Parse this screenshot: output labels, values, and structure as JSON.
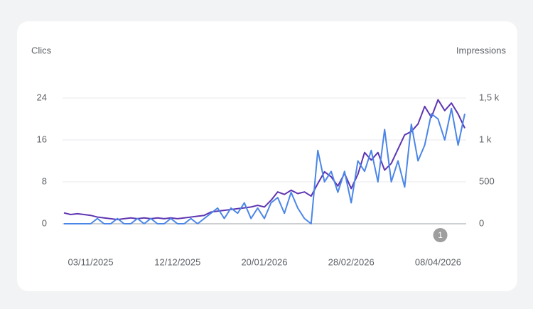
{
  "chart_data": {
    "type": "line",
    "x": [
      "22/10/2025",
      "25/10/2025",
      "28/10/2025",
      "31/10/2025",
      "03/11/2025",
      "06/11/2025",
      "09/11/2025",
      "12/11/2025",
      "15/11/2025",
      "18/11/2025",
      "21/11/2025",
      "24/11/2025",
      "27/11/2025",
      "30/11/2025",
      "03/12/2025",
      "06/12/2025",
      "09/12/2025",
      "12/12/2025",
      "15/12/2025",
      "18/12/2025",
      "21/12/2025",
      "24/12/2025",
      "27/12/2025",
      "30/12/2025",
      "02/01/2026",
      "05/01/2026",
      "08/01/2026",
      "11/01/2026",
      "14/01/2026",
      "17/01/2026",
      "20/01/2026",
      "23/01/2026",
      "26/01/2026",
      "29/01/2026",
      "01/02/2026",
      "04/02/2026",
      "07/02/2026",
      "10/02/2026",
      "13/02/2026",
      "16/02/2026",
      "19/02/2026",
      "22/02/2026",
      "25/02/2026",
      "28/02/2026",
      "03/03/2026",
      "06/03/2026",
      "09/03/2026",
      "12/03/2026",
      "15/03/2026",
      "18/03/2026",
      "21/03/2026",
      "24/03/2026",
      "27/03/2026",
      "30/03/2026",
      "02/04/2026",
      "05/04/2026",
      "08/04/2026",
      "11/04/2026",
      "14/04/2026",
      "17/04/2026",
      "20/04/2026"
    ],
    "series": [
      {
        "name": "Clics",
        "color": "#4a86e8",
        "values": [
          0,
          0,
          0,
          0,
          0,
          1,
          0,
          0,
          1,
          0,
          0,
          1,
          0,
          1,
          0,
          0,
          1,
          0,
          0,
          1,
          0,
          1,
          2,
          3,
          1,
          3,
          2,
          4,
          1,
          3,
          1,
          4,
          5,
          2,
          6,
          3,
          1,
          0,
          14,
          8,
          10,
          6,
          10,
          4,
          12,
          10,
          14,
          8,
          18,
          8,
          12,
          7,
          19,
          12,
          15,
          21,
          20,
          16,
          22,
          15,
          21
        ]
      },
      {
        "name": "Impressions",
        "color": "#5e35b1",
        "axis": "y2",
        "values": [
          130,
          110,
          120,
          110,
          100,
          80,
          70,
          60,
          50,
          60,
          70,
          60,
          70,
          60,
          70,
          60,
          70,
          60,
          70,
          80,
          90,
          100,
          140,
          150,
          160,
          170,
          180,
          190,
          200,
          220,
          200,
          280,
          380,
          350,
          400,
          360,
          380,
          330,
          480,
          620,
          560,
          450,
          600,
          420,
          590,
          850,
          760,
          850,
          640,
          720,
          890,
          1060,
          1100,
          1190,
          1400,
          1270,
          1480,
          1350,
          1440,
          1310,
          1140
        ]
      }
    ],
    "xlim": [
      "22/10/2025",
      "20/04/2026"
    ],
    "xticks": [
      "03/11/2025",
      "12/12/2025",
      "20/01/2026",
      "28/02/2026",
      "08/04/2026"
    ],
    "ylim": [
      0,
      24
    ],
    "yticks": [
      0,
      8,
      16,
      24
    ],
    "y2lim": [
      0,
      1500
    ],
    "y2ticks": [
      0,
      500,
      {
        "value": 1000,
        "label": "1 k"
      },
      {
        "value": 1500,
        "label": "1,5 k"
      }
    ],
    "grid": true,
    "annotations": [
      {
        "x": "09/04/2026",
        "label": "1"
      }
    ]
  }
}
